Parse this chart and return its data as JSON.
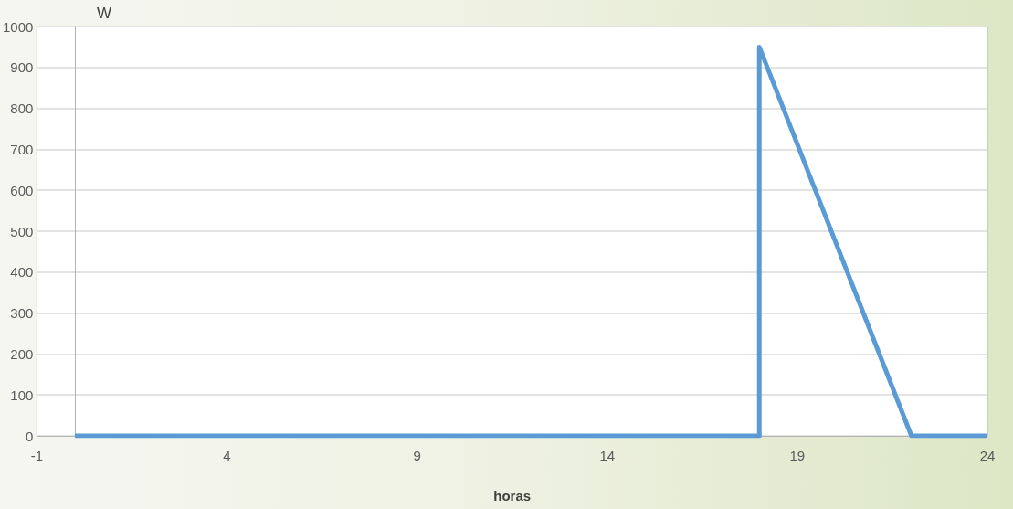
{
  "chart_data": {
    "type": "line",
    "xlabel": "horas",
    "ylabel": "W",
    "x": [
      0,
      18,
      18,
      22,
      23,
      24
    ],
    "values": [
      0,
      0,
      950,
      0,
      0,
      0
    ],
    "color": "#5b9bd5",
    "xlim": [
      -1,
      24
    ],
    "xticks": [
      -1,
      4,
      9,
      14,
      19,
      24
    ],
    "ylim": [
      0,
      1000
    ],
    "yticks": [
      0,
      100,
      200,
      300,
      400,
      500,
      600,
      700,
      800,
      900,
      1000
    ],
    "grid": "y",
    "marker": "none",
    "line_style": "solid"
  }
}
